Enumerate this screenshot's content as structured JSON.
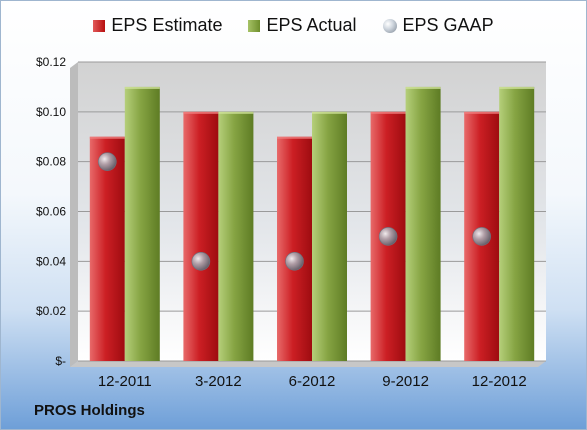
{
  "chart_data": {
    "type": "bar",
    "categories": [
      "12-2011",
      "3-2012",
      "6-2012",
      "9-2012",
      "12-2012"
    ],
    "series": [
      {
        "name": "EPS Estimate",
        "values": [
          0.09,
          0.1,
          0.09,
          0.1,
          0.1
        ],
        "color": "#c0141a"
      },
      {
        "name": "EPS Actual",
        "values": [
          0.11,
          0.1,
          0.1,
          0.11,
          0.11
        ],
        "color": "#7b9a3a"
      },
      {
        "name": "EPS GAAP",
        "values": [
          0.08,
          0.04,
          0.04,
          0.05,
          0.05
        ],
        "color": "#9aa3ad",
        "marker": "sphere"
      }
    ],
    "ylim": [
      0,
      0.12
    ],
    "yticks": [
      0,
      0.02,
      0.04,
      0.06,
      0.08,
      0.1,
      0.12
    ],
    "ytick_labels": [
      "$-",
      "$0.02",
      "$0.04",
      "$0.06",
      "$0.08",
      "$0.10",
      "$0.12"
    ],
    "grid": true,
    "legend_position": "top"
  },
  "legend": {
    "estimate": "EPS Estimate",
    "actual": "EPS Actual",
    "gaap": "EPS GAAP"
  },
  "footer": {
    "company": "PROS Holdings"
  }
}
